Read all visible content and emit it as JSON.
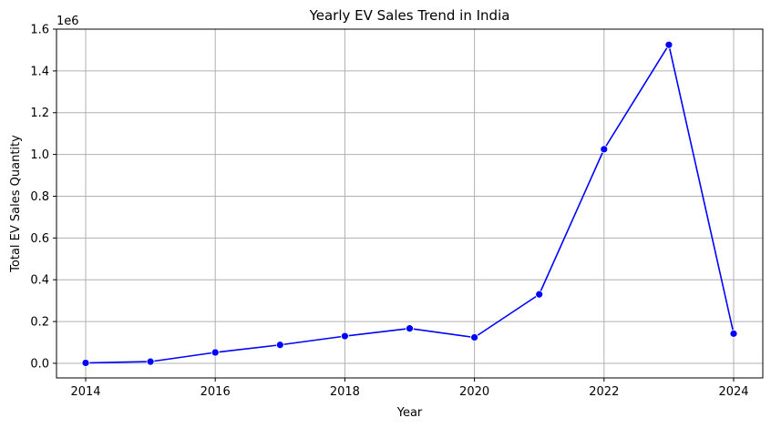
{
  "chart_data": {
    "type": "line",
    "title": "Yearly EV Sales Trend in India",
    "xlabel": "Year",
    "ylabel": "Total EV Sales Quantity",
    "y_offset_text": "1e6",
    "xlim": [
      2013.55,
      2024.45
    ],
    "ylim": [
      -0.07,
      1.6
    ],
    "x_ticks": [
      2014,
      2016,
      2018,
      2020,
      2022,
      2024
    ],
    "x_tick_labels": [
      "2014",
      "2016",
      "2018",
      "2020",
      "2022",
      "2024"
    ],
    "y_ticks": [
      0.0,
      0.2,
      0.4,
      0.6,
      0.8,
      1.0,
      1.2,
      1.4,
      1.6
    ],
    "y_tick_labels": [
      "0.0",
      "0.2",
      "0.4",
      "0.6",
      "0.8",
      "1.0",
      "1.2",
      "1.4",
      "1.6"
    ],
    "grid": true,
    "color": "#0000ff",
    "series": [
      {
        "x": [
          2014,
          2015,
          2016,
          2017,
          2018,
          2019,
          2020,
          2021,
          2022,
          2023,
          2024
        ],
        "values": [
          0.002,
          0.008,
          0.052,
          0.088,
          0.13,
          0.167,
          0.124,
          0.33,
          1.025,
          1.525,
          0.142
        ]
      }
    ]
  }
}
